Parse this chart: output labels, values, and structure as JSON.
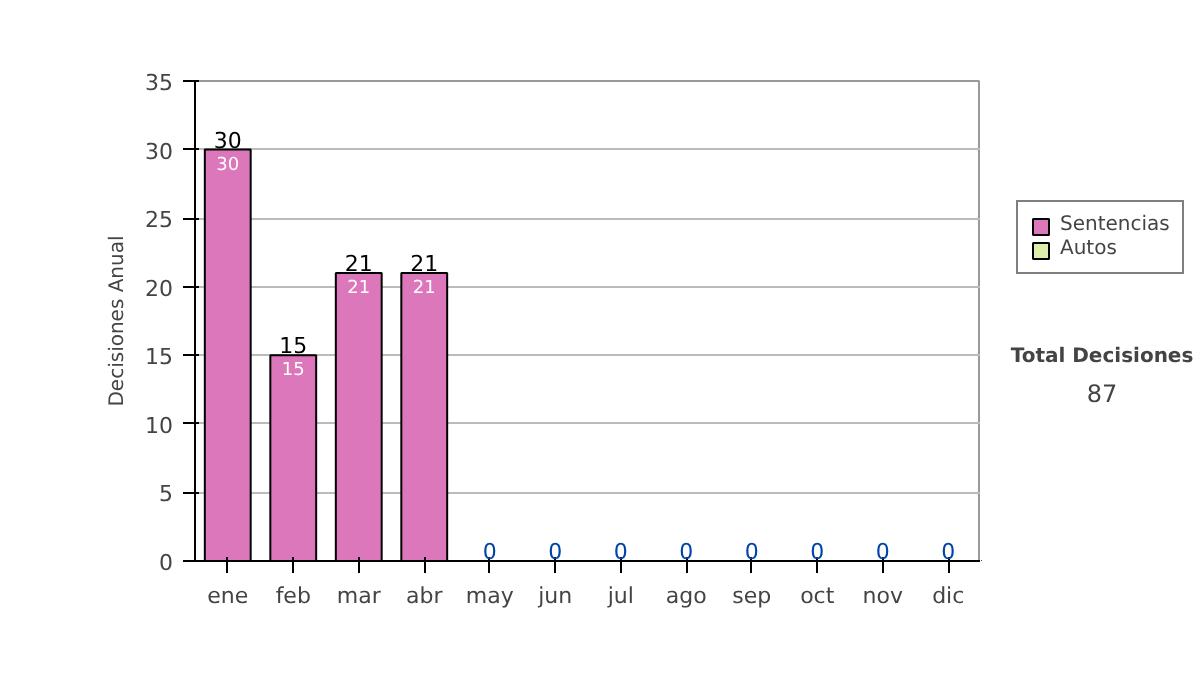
{
  "chart_data": {
    "type": "bar",
    "stacked": true,
    "ylabel": "Decisiones Anual",
    "categories": [
      "ene",
      "feb",
      "mar",
      "abr",
      "may",
      "jun",
      "jul",
      "ago",
      "sep",
      "oct",
      "nov",
      "dic"
    ],
    "series": [
      {
        "name": "Sentencias",
        "color": "#dd77bb",
        "values": [
          30,
          15,
          21,
          21,
          0,
          0,
          0,
          0,
          0,
          0,
          0,
          0
        ],
        "value_labels": [
          "30",
          "15",
          "21",
          "21",
          null,
          null,
          null,
          null,
          null,
          null,
          null,
          null
        ]
      },
      {
        "name": "Autos",
        "color": "#ddeeaa",
        "values": [
          0,
          0,
          0,
          0,
          0,
          0,
          0,
          0,
          0,
          0,
          0,
          0
        ],
        "value_labels": [
          null,
          null,
          null,
          null,
          null,
          null,
          null,
          null,
          null,
          null,
          null,
          null
        ]
      }
    ],
    "totals": [
      "30",
      "15",
      "21",
      "21",
      "0",
      "0",
      "0",
      "0",
      "0",
      "0",
      "0",
      "0"
    ],
    "ylim": [
      0,
      35
    ],
    "yticks": [
      0,
      5,
      10,
      15,
      20,
      25,
      30,
      35
    ],
    "grid": "y",
    "legend": "right",
    "annotations": [
      "Total Decisiones",
      "87"
    ]
  }
}
